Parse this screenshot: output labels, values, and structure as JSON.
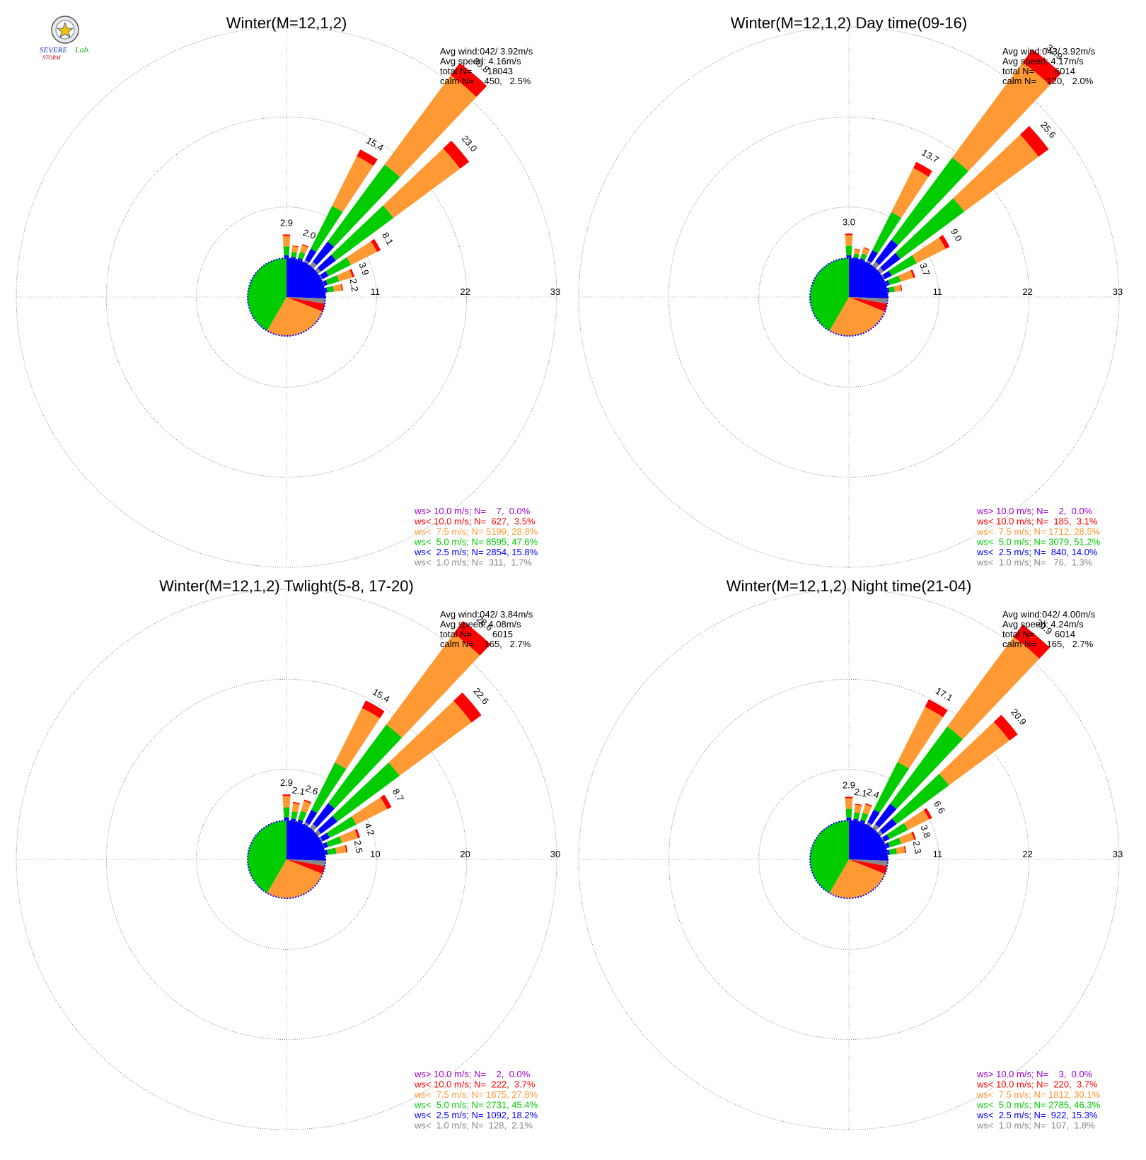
{
  "logo": {
    "text_a": "SEVERE",
    "text_b": "STORM",
    "text_c": "Lab."
  },
  "legend_colors": {
    "gt10": "#9900cc",
    "lt10": "#ff0000",
    "lt7_5": "#ff9933",
    "lt5": "#00cc00",
    "lt2_5": "#0000ff",
    "lt1": "#888888"
  },
  "chart_data": [
    {
      "type": "wind_rose",
      "title": "Winter(M=12,1,2)",
      "rings": [
        11,
        22,
        33
      ],
      "ring_labels": [
        "11",
        "22",
        "33"
      ],
      "stats": {
        "avg_wind": "Avg wind:042/ 3.92m/s",
        "avg_speed": "Avg speed: 4.16m/s",
        "total": "total N=      18043",
        "calm": "calm N=    450,   2.5%"
      },
      "direction_labels": [
        {
          "dir": 0,
          "label": "2.9"
        },
        {
          "dir": 20,
          "label": "2.0"
        },
        {
          "dir": 30,
          "label": "15.4"
        },
        {
          "dir": 40,
          "label": "30.8"
        },
        {
          "dir": 50,
          "label": "23.0"
        },
        {
          "dir": 60,
          "label": "8.1"
        },
        {
          "dir": 70,
          "label": "3.9"
        },
        {
          "dir": 80,
          "label": "2.2"
        }
      ],
      "petals": [
        {
          "dir": 0,
          "total": 2.9
        },
        {
          "dir": 10,
          "total": 1.6
        },
        {
          "dir": 20,
          "total": 2.0
        },
        {
          "dir": 30,
          "total": 15.4
        },
        {
          "dir": 40,
          "total": 30.8
        },
        {
          "dir": 50,
          "total": 23.0
        },
        {
          "dir": 60,
          "total": 8.1
        },
        {
          "dir": 70,
          "total": 3.9
        },
        {
          "dir": 80,
          "total": 2.2
        }
      ],
      "legend": [
        {
          "label": "ws> 10.0 m/s; N=    7,  0.0%",
          "color": "#9900cc"
        },
        {
          "label": "ws< 10.0 m/s; N=  627,  3.5%",
          "color": "#ff0000"
        },
        {
          "label": "ws<  7.5 m/s; N= 5199, 28.8%",
          "color": "#ff9933"
        },
        {
          "label": "ws<  5.0 m/s; N= 8595, 47.6%",
          "color": "#00cc00"
        },
        {
          "label": "ws<  2.5 m/s; N= 2854, 15.8%",
          "color": "#0000ff"
        },
        {
          "label": "ws<  1.0 m/s; N=  311,  1.7%",
          "color": "#888888"
        }
      ]
    },
    {
      "type": "wind_rose",
      "title": "Winter(M=12,1,2) Day time(09-16)",
      "rings": [
        11,
        22,
        33
      ],
      "ring_labels": [
        "11",
        "22",
        "33"
      ],
      "stats": {
        "avg_wind": "Avg wind:043/ 3.92m/s",
        "avg_speed": "Avg speed: 4.17m/s",
        "total": "total N=        6014",
        "calm": "calm N=    120,   2.0%"
      },
      "direction_labels": [
        {
          "dir": 0,
          "label": "3.0"
        },
        {
          "dir": 30,
          "label": "13.7"
        },
        {
          "dir": 40,
          "label": "32.9"
        },
        {
          "dir": 50,
          "label": "25.6"
        },
        {
          "dir": 60,
          "label": "9.0"
        },
        {
          "dir": 70,
          "label": "3.7"
        }
      ],
      "petals": [
        {
          "dir": 0,
          "total": 3.0
        },
        {
          "dir": 10,
          "total": 1.2
        },
        {
          "dir": 20,
          "total": 1.6
        },
        {
          "dir": 30,
          "total": 13.7
        },
        {
          "dir": 40,
          "total": 32.9
        },
        {
          "dir": 50,
          "total": 25.6
        },
        {
          "dir": 60,
          "total": 9.0
        },
        {
          "dir": 70,
          "total": 3.7
        },
        {
          "dir": 80,
          "total": 1.8
        }
      ],
      "legend": [
        {
          "label": "ws> 10.0 m/s; N=    2,  0.0%",
          "color": "#9900cc"
        },
        {
          "label": "ws< 10.0 m/s; N=  185,  3.1%",
          "color": "#ff0000"
        },
        {
          "label": "ws<  7.5 m/s; N= 1712, 28.5%",
          "color": "#ff9933"
        },
        {
          "label": "ws<  5.0 m/s; N= 3079, 51.2%",
          "color": "#00cc00"
        },
        {
          "label": "ws<  2.5 m/s; N=  840, 14.0%",
          "color": "#0000ff"
        },
        {
          "label": "ws<  1.0 m/s; N=   76,  1.3%",
          "color": "#888888"
        }
      ]
    },
    {
      "type": "wind_rose",
      "title": "Winter(M=12,1,2) Twlight(5-8, 17-20)",
      "rings": [
        10,
        20,
        30
      ],
      "ring_labels": [
        "10",
        "20",
        "30"
      ],
      "stats": {
        "avg_wind": "Avg wind:042/ 3.84m/s",
        "avg_speed": "Avg speed: 4.08m/s",
        "total": "total N=        6015",
        "calm": "calm N=    165,   2.7%"
      },
      "direction_labels": [
        {
          "dir": 0,
          "label": "2.9"
        },
        {
          "dir": 10,
          "label": "2.1"
        },
        {
          "dir": 20,
          "label": "2.6"
        },
        {
          "dir": 30,
          "label": "15.4"
        },
        {
          "dir": 40,
          "label": "28.6"
        },
        {
          "dir": 50,
          "label": "22.6"
        },
        {
          "dir": 60,
          "label": "8.7"
        },
        {
          "dir": 70,
          "label": "4.2"
        },
        {
          "dir": 80,
          "label": "2.5"
        }
      ],
      "petals": [
        {
          "dir": 0,
          "total": 2.9
        },
        {
          "dir": 10,
          "total": 2.1
        },
        {
          "dir": 20,
          "total": 2.6
        },
        {
          "dir": 30,
          "total": 15.4
        },
        {
          "dir": 40,
          "total": 28.6
        },
        {
          "dir": 50,
          "total": 22.6
        },
        {
          "dir": 60,
          "total": 8.7
        },
        {
          "dir": 70,
          "total": 4.2
        },
        {
          "dir": 80,
          "total": 2.5
        }
      ],
      "legend": [
        {
          "label": "ws> 10.0 m/s; N=    2,  0.0%",
          "color": "#9900cc"
        },
        {
          "label": "ws< 10.0 m/s; N=  222,  3.7%",
          "color": "#ff0000"
        },
        {
          "label": "ws<  7.5 m/s; N= 1675, 27.8%",
          "color": "#ff9933"
        },
        {
          "label": "ws<  5.0 m/s; N= 2731, 45.4%",
          "color": "#00cc00"
        },
        {
          "label": "ws<  2.5 m/s; N= 1092, 18.2%",
          "color": "#0000ff"
        },
        {
          "label": "ws<  1.0 m/s; N=  128,  2.1%",
          "color": "#888888"
        }
      ]
    },
    {
      "type": "wind_rose",
      "title": "Winter(M=12,1,2) Night time(21-04)",
      "rings": [
        11,
        22,
        33
      ],
      "ring_labels": [
        "11",
        "22",
        "33"
      ],
      "stats": {
        "avg_wind": "Avg wind:042/ 4.00m/s",
        "avg_speed": "Avg speed: 4.24m/s",
        "total": "total N=        6014",
        "calm": "calm N=    165,   2.7%"
      },
      "direction_labels": [
        {
          "dir": 0,
          "label": "2.9"
        },
        {
          "dir": 10,
          "label": "2.1"
        },
        {
          "dir": 20,
          "label": "2.4"
        },
        {
          "dir": 30,
          "label": "17.1"
        },
        {
          "dir": 40,
          "label": "30.9"
        },
        {
          "dir": 50,
          "label": "20.9"
        },
        {
          "dir": 60,
          "label": "6.6"
        },
        {
          "dir": 70,
          "label": "3.8"
        },
        {
          "dir": 80,
          "label": "2.3"
        }
      ],
      "petals": [
        {
          "dir": 0,
          "total": 2.9
        },
        {
          "dir": 10,
          "total": 2.1
        },
        {
          "dir": 20,
          "total": 2.4
        },
        {
          "dir": 30,
          "total": 17.1
        },
        {
          "dir": 40,
          "total": 30.9
        },
        {
          "dir": 50,
          "total": 20.9
        },
        {
          "dir": 60,
          "total": 6.6
        },
        {
          "dir": 70,
          "total": 3.8
        },
        {
          "dir": 80,
          "total": 2.3
        }
      ],
      "legend": [
        {
          "label": "ws> 10.0 m/s; N=    3,  0.0%",
          "color": "#9900cc"
        },
        {
          "label": "ws< 10.0 m/s; N=  220,  3.7%",
          "color": "#ff0000"
        },
        {
          "label": "ws<  7.5 m/s; N= 1812, 30.1%",
          "color": "#ff9933"
        },
        {
          "label": "ws<  5.0 m/s; N= 2785, 46.3%",
          "color": "#00cc00"
        },
        {
          "label": "ws<  2.5 m/s; N=  922, 15.3%",
          "color": "#0000ff"
        },
        {
          "label": "ws<  1.0 m/s; N=  107,  1.8%",
          "color": "#888888"
        }
      ]
    }
  ]
}
